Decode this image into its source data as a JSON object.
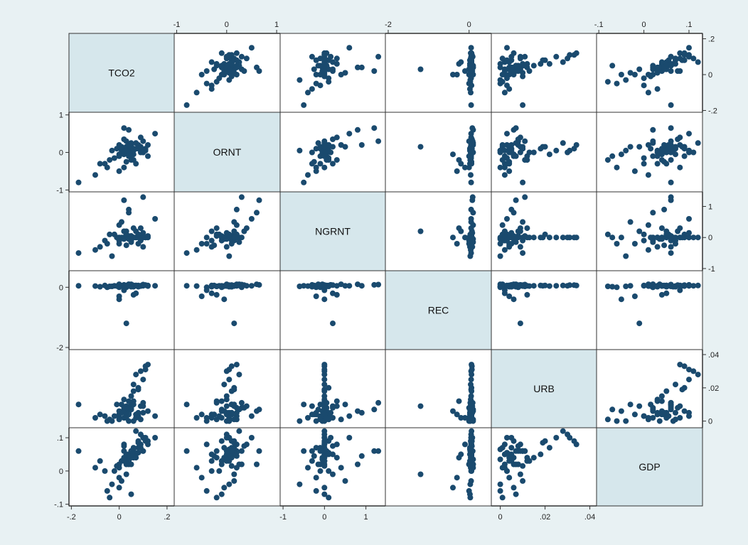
{
  "chart_data": {
    "type": "scatter",
    "subtype": "scatter-matrix",
    "title": "",
    "grid": false,
    "colors": {
      "marker": "#1a4a6e",
      "diagonal_fill": "#d6e7ec",
      "background": "#e8f1f3",
      "plot_fill": "#ffffff",
      "frame": "#333333"
    },
    "variables": [
      {
        "name": "TCO2",
        "ticks": [
          -0.2,
          0,
          0.2
        ],
        "tick_labels": [
          "-.2",
          "0",
          ".2"
        ],
        "range": [
          -0.21,
          0.23
        ]
      },
      {
        "name": "ORNT",
        "ticks": [
          -1,
          0,
          1
        ],
        "tick_labels": [
          "-1",
          "0",
          "1"
        ],
        "range": [
          -1.05,
          1.07
        ]
      },
      {
        "name": "NGRNT",
        "ticks": [
          -1,
          0,
          1
        ],
        "tick_labels": [
          "-1",
          "0",
          "1"
        ],
        "range": [
          -1.07,
          1.47
        ]
      },
      {
        "name": "REC",
        "ticks": [
          -2,
          0
        ],
        "tick_labels": [
          "-2",
          "0"
        ],
        "range": [
          -2.07,
          0.55
        ]
      },
      {
        "name": "URB",
        "ticks": [
          0,
          0.02,
          0.04
        ],
        "tick_labels": [
          "0",
          ".02",
          ".04"
        ],
        "range": [
          -0.004,
          0.043
        ]
      },
      {
        "name": "GDP",
        "ticks": [
          -0.1,
          0,
          0.1
        ],
        "tick_labels": [
          "-.1",
          "0",
          ".1"
        ],
        "range": [
          -0.105,
          0.13
        ]
      }
    ],
    "observations": [
      [
        0.03,
        0.1,
        0.0,
        0.02,
        0.005,
        0.05
      ],
      [
        0.05,
        0.2,
        0.05,
        0.05,
        0.008,
        0.06
      ],
      [
        0.0,
        -0.1,
        -0.1,
        0.0,
        0.002,
        0.02
      ],
      [
        0.08,
        0.15,
        0.1,
        0.06,
        0.02,
        0.09
      ],
      [
        0.1,
        0.05,
        0.0,
        0.05,
        0.025,
        0.1
      ],
      [
        0.12,
        0.2,
        0.0,
        0.06,
        0.034,
        0.08
      ],
      [
        0.09,
        0.0,
        0.0,
        0.05,
        0.03,
        0.11
      ],
      [
        0.06,
        -0.05,
        0.0,
        0.04,
        0.022,
        0.07
      ],
      [
        0.11,
        0.1,
        0.0,
        0.07,
        0.033,
        0.09
      ],
      [
        0.07,
        0.25,
        0.0,
        0.06,
        0.028,
        0.12
      ],
      [
        -0.17,
        -0.8,
        -0.5,
        0.05,
        0.01,
        0.06
      ],
      [
        -0.08,
        -0.3,
        -0.3,
        0.02,
        0.004,
        0.03
      ],
      [
        -0.05,
        -0.4,
        -0.2,
        0.0,
        0.0,
        -0.06
      ],
      [
        -0.04,
        -0.2,
        0.1,
        0.03,
        0.001,
        -0.08
      ],
      [
        0.02,
        0.65,
        1.2,
        0.08,
        0.007,
        0.06
      ],
      [
        0.04,
        0.6,
        0.8,
        0.1,
        0.006,
        0.02
      ],
      [
        0.1,
        0.3,
        1.3,
        0.09,
        0.011,
        0.06
      ],
      [
        0.15,
        0.5,
        0.6,
        0.05,
        0.003,
        0.1
      ],
      [
        0.0,
        -0.5,
        -0.2,
        -0.3,
        0.004,
        -0.02
      ],
      [
        0.03,
        0.15,
        0.2,
        -1.2,
        0.009,
        -0.01
      ],
      [
        0.06,
        -0.2,
        0.3,
        -0.25,
        0.012,
        0.04
      ],
      [
        -0.1,
        -0.6,
        -0.4,
        0.04,
        0.002,
        0.01
      ],
      [
        0.01,
        0.05,
        0.0,
        0.05,
        0.005,
        0.03
      ],
      [
        0.02,
        -0.05,
        -0.05,
        0.04,
        0.006,
        0.04
      ],
      [
        0.04,
        0.0,
        0.05,
        0.06,
        0.004,
        0.05
      ],
      [
        0.05,
        0.1,
        -0.1,
        0.07,
        0.01,
        0.06
      ],
      [
        0.03,
        0.3,
        0.0,
        0.0,
        0.008,
        0.02
      ],
      [
        -0.02,
        -0.15,
        0.1,
        0.05,
        0.003,
        0.0
      ],
      [
        0.08,
        0.1,
        -0.2,
        0.02,
        0.005,
        0.07
      ],
      [
        0.07,
        -0.3,
        0.2,
        -0.2,
        0.002,
        0.05
      ],
      [
        0.0,
        0.2,
        0.4,
        0.1,
        0.001,
        0.01
      ],
      [
        0.09,
        0.4,
        0.3,
        0.05,
        0.009,
        0.08
      ],
      [
        0.05,
        0.0,
        0.0,
        0.05,
        0.015,
        0.04
      ],
      [
        0.06,
        0.1,
        0.0,
        0.06,
        0.018,
        0.05
      ],
      [
        0.04,
        -0.1,
        0.0,
        0.05,
        0.012,
        0.03
      ],
      [
        -0.03,
        0.05,
        -0.6,
        0.03,
        0.0,
        -0.04
      ],
      [
        0.02,
        -0.4,
        0.0,
        -0.1,
        0.002,
        0.08
      ],
      [
        0.1,
        0.0,
        0.15,
        0.08,
        0.005,
        0.1
      ],
      [
        0.05,
        0.25,
        -0.15,
        0.1,
        0.007,
        0.02
      ],
      [
        0.12,
        -0.1,
        0.05,
        0.04,
        0.006,
        0.09
      ],
      [
        0.01,
        0.15,
        0.5,
        0.05,
        0.01,
        -0.03
      ],
      [
        0.03,
        -0.25,
        -0.25,
        0.06,
        0.004,
        0.045
      ],
      [
        0.06,
        0.05,
        0.0,
        0.02,
        0.0,
        0.065
      ],
      [
        -0.01,
        0.1,
        0.0,
        0.04,
        0.01,
        0.015
      ],
      [
        0.08,
        0.2,
        0.1,
        0.05,
        0.003,
        0.055
      ],
      [
        0.04,
        0.0,
        -0.05,
        0.1,
        0.0,
        0.035
      ],
      [
        0.02,
        0.35,
        0.2,
        0.07,
        0.008,
        0.075
      ],
      [
        0.0,
        -0.05,
        0.0,
        -0.4,
        0.006,
        -0.05
      ],
      [
        0.07,
        0.1,
        0.0,
        0.06,
        0.004,
        0.04
      ],
      [
        0.05,
        -0.2,
        0.05,
        0.03,
        0.011,
        0.06
      ],
      [
        0.03,
        0.05,
        0.1,
        0.05,
        0.002,
        0.05
      ],
      [
        0.09,
        0.15,
        -0.1,
        0.04,
        0.001,
        0.07
      ],
      [
        0.06,
        0.1,
        0.0,
        0.06,
        0.01,
        0.06
      ],
      [
        0.11,
        0.05,
        0.0,
        0.07,
        0.031,
        0.1
      ],
      [
        0.08,
        0.15,
        0.0,
        0.05,
        0.019,
        0.085
      ],
      [
        0.02,
        0.0,
        0.0,
        0.04,
        0.013,
        0.03
      ],
      [
        -0.06,
        -0.3,
        -0.1,
        0.06,
        0.003,
        0.0
      ],
      [
        0.04,
        0.2,
        0.9,
        0.05,
        0.005,
        0.045
      ],
      [
        0.1,
        0.0,
        -0.3,
        0.08,
        0.009,
        0.06
      ],
      [
        0.05,
        -0.1,
        0.0,
        0.02,
        0.007,
        -0.07
      ]
    ]
  }
}
